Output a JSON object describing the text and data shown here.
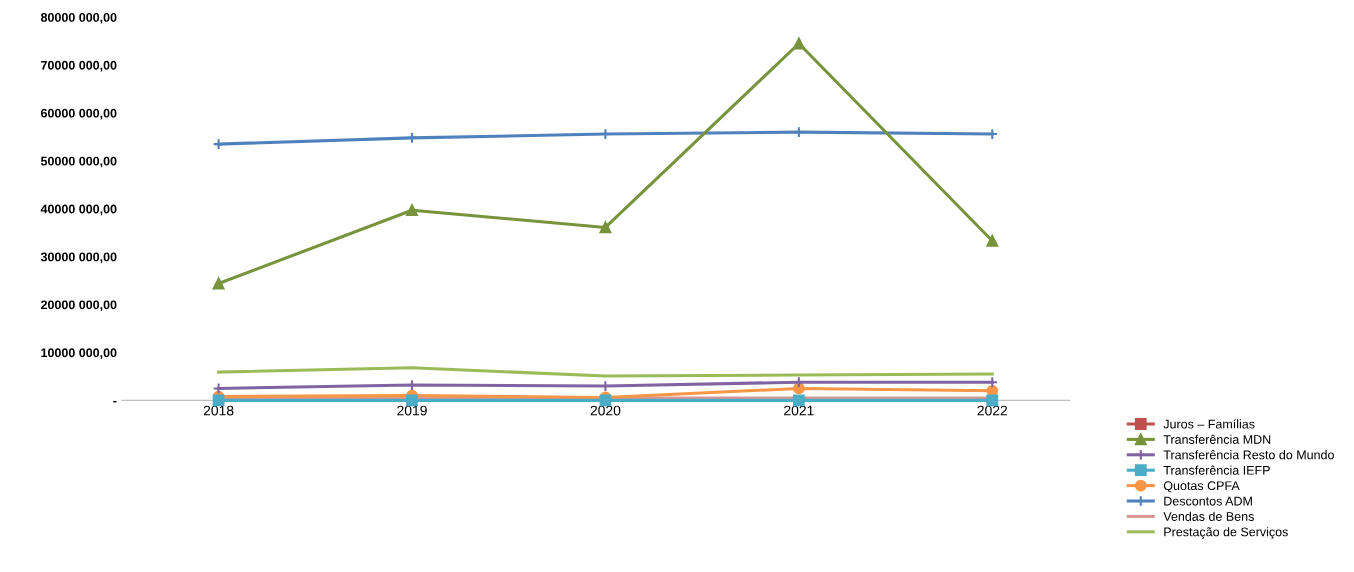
{
  "chart_data": {
    "type": "line",
    "categories": [
      "2018",
      "2019",
      "2020",
      "2021",
      "2022"
    ],
    "series": [
      {
        "name": "Juros – Famílias",
        "color": "#c0504d",
        "marker": "square",
        "values": [
          null,
          null,
          null,
          null,
          null
        ]
      },
      {
        "name": "Transferência MDN",
        "color": "#77933c",
        "marker": "triangle",
        "values": [
          24400000,
          39700000,
          36100000,
          74500000,
          33300000
        ]
      },
      {
        "name": "Transferência Resto do Mundo",
        "color": "#8064a2",
        "marker": "cross",
        "values": [
          2500000,
          3200000,
          3000000,
          3800000,
          3800000
        ]
      },
      {
        "name": "Transferência IEFP",
        "color": "#4bacc6",
        "marker": "square",
        "values": [
          0,
          0,
          0,
          0,
          0
        ]
      },
      {
        "name": "Quotas CPFA",
        "color": "#f79646",
        "marker": "circle",
        "values": [
          800000,
          1000000,
          600000,
          2500000,
          2000000
        ]
      },
      {
        "name": "Descontos ADM",
        "color": "#4f81bd",
        "marker": "cross",
        "values": [
          53500000,
          54800000,
          55600000,
          56000000,
          55600000
        ]
      },
      {
        "name": "Vendas de Bens",
        "color": "#d99694",
        "values": [
          500000,
          500000,
          500000,
          500000,
          500000
        ]
      },
      {
        "name": "Prestação de Serviços",
        "color": "#9bbb59",
        "values": [
          5900000,
          6800000,
          5100000,
          5300000,
          5500000
        ]
      }
    ],
    "ylim": [
      0,
      80000000
    ],
    "yticks": [
      {
        "value": 0,
        "label": "-"
      },
      {
        "value": 10000000,
        "label": "10000 000,00"
      },
      {
        "value": 20000000,
        "label": "20000 000,00"
      },
      {
        "value": 30000000,
        "label": "30000 000,00"
      },
      {
        "value": 40000000,
        "label": "40000 000,00"
      },
      {
        "value": 50000000,
        "label": "50000 000,00"
      },
      {
        "value": 60000000,
        "label": "60000 000,00"
      },
      {
        "value": 70000000,
        "label": "70000 000,00"
      },
      {
        "value": 80000000,
        "label": "80000 000,00"
      }
    ],
    "grid": false,
    "legend": "bottom right",
    "line_style": "solid"
  }
}
